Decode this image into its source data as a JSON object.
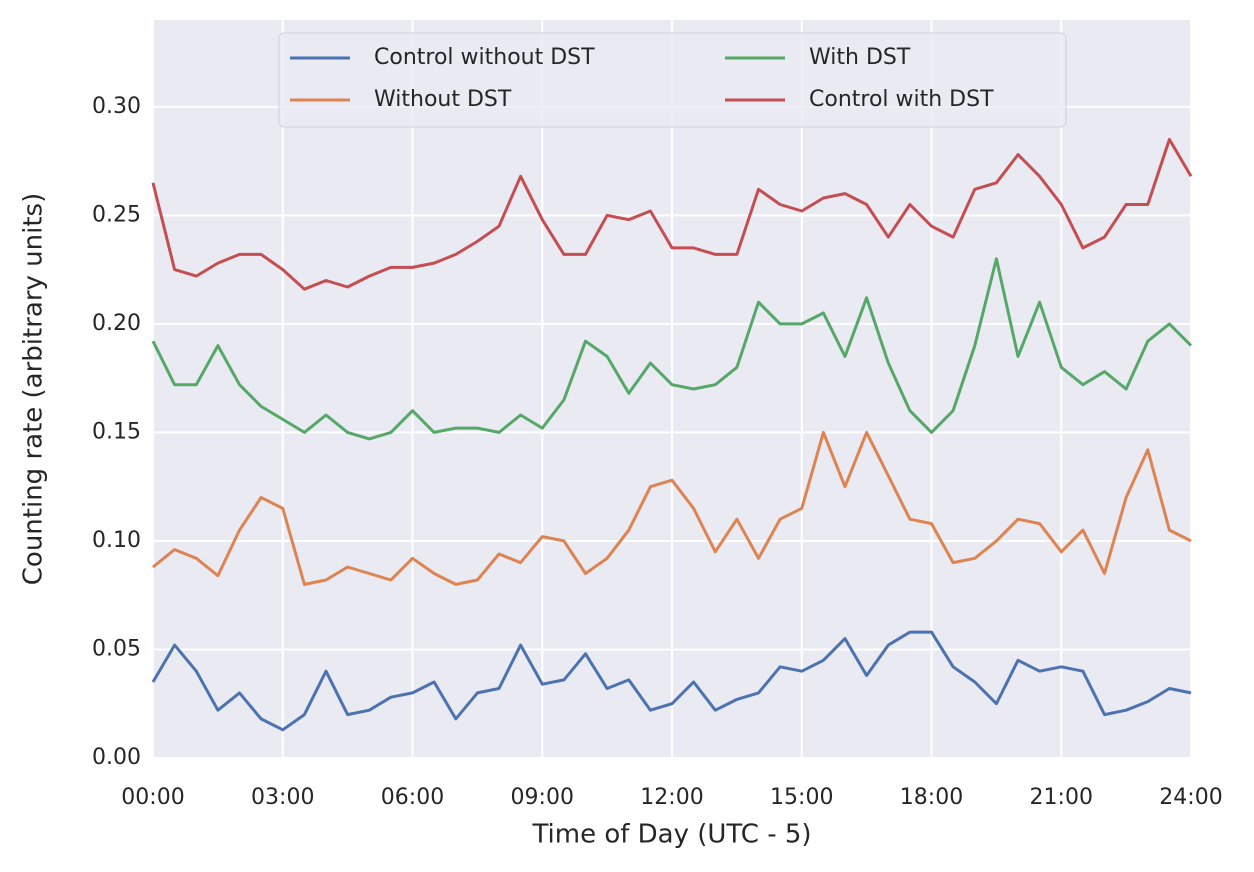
{
  "chart_data": {
    "type": "line",
    "xlabel": "Time of Day (UTC - 5)",
    "ylabel": "Counting rate (arbitrary units)",
    "x": [
      0,
      0.5,
      1,
      1.5,
      2,
      2.5,
      3,
      3.5,
      4,
      4.5,
      5,
      5.5,
      6,
      6.5,
      7,
      7.5,
      8,
      8.5,
      9,
      9.5,
      10,
      10.5,
      11,
      11.5,
      12,
      12.5,
      13,
      13.5,
      14,
      14.5,
      15,
      15.5,
      16,
      16.5,
      17,
      17.5,
      18,
      18.5,
      19,
      19.5,
      20,
      20.5,
      21,
      21.5,
      22,
      22.5,
      23,
      23.5,
      24
    ],
    "series": [
      {
        "name": "Control without DST",
        "color": "#4c72b0",
        "values": [
          0.035,
          0.052,
          0.04,
          0.022,
          0.03,
          0.018,
          0.013,
          0.02,
          0.04,
          0.02,
          0.022,
          0.028,
          0.03,
          0.035,
          0.018,
          0.03,
          0.032,
          0.052,
          0.034,
          0.036,
          0.048,
          0.032,
          0.036,
          0.022,
          0.025,
          0.035,
          0.022,
          0.027,
          0.03,
          0.042,
          0.04,
          0.045,
          0.055,
          0.038,
          0.052,
          0.058,
          0.058,
          0.042,
          0.035,
          0.025,
          0.045,
          0.04,
          0.042,
          0.04,
          0.02,
          0.022,
          0.026,
          0.032,
          0.03
        ]
      },
      {
        "name": "Without DST",
        "color": "#dd8452",
        "values": [
          0.088,
          0.096,
          0.092,
          0.084,
          0.105,
          0.12,
          0.115,
          0.08,
          0.082,
          0.088,
          0.085,
          0.082,
          0.092,
          0.085,
          0.08,
          0.082,
          0.094,
          0.09,
          0.102,
          0.1,
          0.085,
          0.092,
          0.105,
          0.125,
          0.128,
          0.115,
          0.095,
          0.11,
          0.092,
          0.11,
          0.115,
          0.15,
          0.125,
          0.15,
          0.13,
          0.11,
          0.108,
          0.09,
          0.092,
          0.1,
          0.11,
          0.108,
          0.095,
          0.105,
          0.085,
          0.12,
          0.142,
          0.105,
          0.1
        ]
      },
      {
        "name": "With DST",
        "color": "#55a868",
        "values": [
          0.192,
          0.172,
          0.172,
          0.19,
          0.172,
          0.162,
          0.156,
          0.15,
          0.158,
          0.15,
          0.147,
          0.15,
          0.16,
          0.15,
          0.152,
          0.152,
          0.15,
          0.158,
          0.152,
          0.165,
          0.192,
          0.185,
          0.168,
          0.182,
          0.172,
          0.17,
          0.172,
          0.18,
          0.21,
          0.2,
          0.2,
          0.205,
          0.185,
          0.212,
          0.182,
          0.16,
          0.15,
          0.16,
          0.19,
          0.23,
          0.185,
          0.21,
          0.18,
          0.172,
          0.178,
          0.17,
          0.192,
          0.2,
          0.19
        ]
      },
      {
        "name": "Control with DST",
        "color": "#c44e52",
        "values": [
          0.265,
          0.225,
          0.222,
          0.228,
          0.232,
          0.232,
          0.225,
          0.216,
          0.22,
          0.217,
          0.222,
          0.226,
          0.226,
          0.228,
          0.232,
          0.238,
          0.245,
          0.268,
          0.248,
          0.232,
          0.232,
          0.25,
          0.248,
          0.252,
          0.235,
          0.235,
          0.232,
          0.232,
          0.262,
          0.255,
          0.252,
          0.258,
          0.26,
          0.255,
          0.24,
          0.255,
          0.245,
          0.24,
          0.262,
          0.265,
          0.278,
          0.268,
          0.255,
          0.235,
          0.24,
          0.255,
          0.255,
          0.285,
          0.268
        ]
      }
    ],
    "xlim": [
      0,
      24
    ],
    "xticks": [
      {
        "value": 0,
        "label": "00:00"
      },
      {
        "value": 3,
        "label": "03:00"
      },
      {
        "value": 6,
        "label": "06:00"
      },
      {
        "value": 9,
        "label": "09:00"
      },
      {
        "value": 12,
        "label": "12:00"
      },
      {
        "value": 15,
        "label": "15:00"
      },
      {
        "value": 18,
        "label": "18:00"
      },
      {
        "value": 21,
        "label": "21:00"
      },
      {
        "value": 24,
        "label": "24:00"
      }
    ],
    "ylim": [
      0,
      0.34
    ],
    "yticks": [
      {
        "value": 0,
        "label": "0.00"
      },
      {
        "value": 0.05,
        "label": "0.05"
      },
      {
        "value": 0.1,
        "label": "0.10"
      },
      {
        "value": 0.15,
        "label": "0.15"
      },
      {
        "value": 0.2,
        "label": "0.20"
      },
      {
        "value": 0.25,
        "label": "0.25"
      },
      {
        "value": 0.3,
        "label": "0.30"
      }
    ],
    "grid": true,
    "legend": "upper center"
  }
}
